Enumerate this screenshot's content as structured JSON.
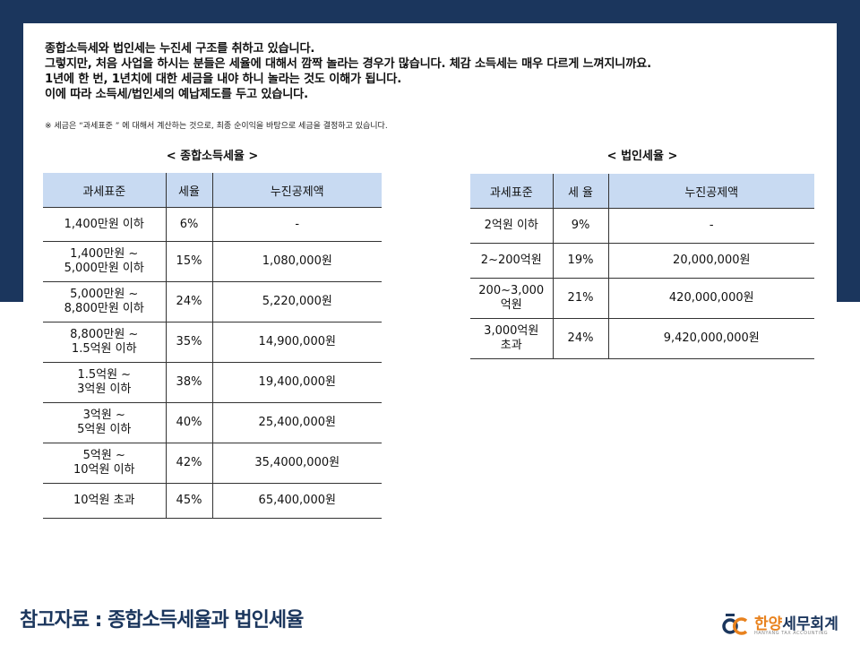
{
  "intro": {
    "lines": [
      "종합소득세와 법인세는 누진세 구조를 취하고 있습니다.",
      "그렇지만, 처음 사업을 하시는 분들은 세율에 대해서 깜짝 놀라는 경우가 많습니다. 체감 소득세는 매우 다르게 느껴지니까요.",
      "1년에 한 번, 1년치에 대한 세금을 내야 하니 놀라는 것도 이해가 됩니다.",
      "이에 따라 소득세/법인세의 예납제도를 두고 있습니다."
    ],
    "note": "※ 세금은 “과세표준 ” 에 대해서 계산하는 것으로, 최종 순이익을 바탕으로 세금을 결정하고 있습니다."
  },
  "income_tax": {
    "caption": "< 종합소득세율 >",
    "headers": [
      "과세표준",
      "세율",
      "누진공제액"
    ],
    "rows": [
      {
        "base": [
          "1,400만원 이하"
        ],
        "rate": "6%",
        "deduction": "-"
      },
      {
        "base": [
          "1,400만원 ~",
          "5,000만원 이하"
        ],
        "rate": "15%",
        "deduction": "1,080,000원"
      },
      {
        "base": [
          "5,000만원 ~",
          "8,800만원 이하"
        ],
        "rate": "24%",
        "deduction": "5,220,000원"
      },
      {
        "base": [
          "8,800만원 ~",
          "1.5억원 이하"
        ],
        "rate": "35%",
        "deduction": "14,900,000원"
      },
      {
        "base": [
          "1.5억원 ~",
          "3억원 이하"
        ],
        "rate": "38%",
        "deduction": "19,400,000원"
      },
      {
        "base": [
          "3억원 ~",
          "5억원 이하"
        ],
        "rate": "40%",
        "deduction": "25,400,000원"
      },
      {
        "base": [
          "5억원 ~",
          "10억원 이하"
        ],
        "rate": "42%",
        "deduction": "35,4000,000원"
      },
      {
        "base": [
          "10억원 초과"
        ],
        "rate": "45%",
        "deduction": "65,400,000원"
      }
    ]
  },
  "corporate_tax": {
    "caption": "< 법인세율 >",
    "headers": [
      "과세표준",
      "세 율",
      "누진공제액"
    ],
    "rows": [
      {
        "base": [
          "2억원 이하"
        ],
        "rate": "9%",
        "deduction": "-"
      },
      {
        "base": [
          "2~200억원"
        ],
        "rate": "19%",
        "deduction": "20,000,000원"
      },
      {
        "base": [
          "200~3,000",
          "억원"
        ],
        "rate": "21%",
        "deduction": "420,000,000원"
      },
      {
        "base": [
          "3,000억원",
          "초과"
        ],
        "rate": "24%",
        "deduction": "9,420,000,000원"
      }
    ]
  },
  "footer": {
    "title": "참고자료 : 종합소득세율과 법인세율",
    "logo_name_accent": "한양",
    "logo_name_rest": "세무회계",
    "logo_sub": "HANYANG TAX ACCOUNTING"
  },
  "colors": {
    "navy": "#1b365d",
    "header_fill": "#c8daf2",
    "logo_accent": "#e8821e"
  }
}
